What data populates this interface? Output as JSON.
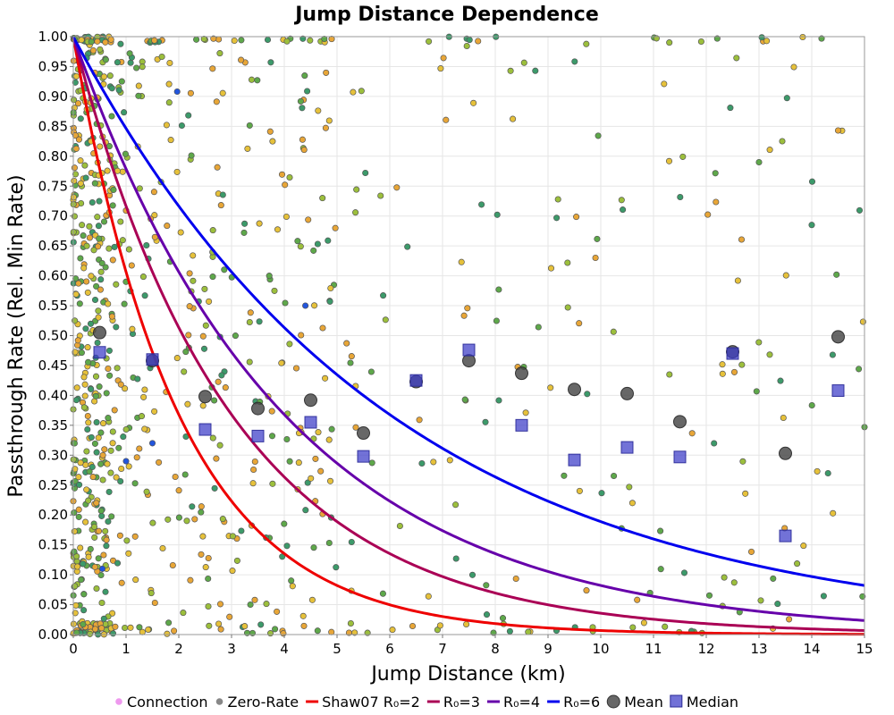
{
  "chart_data": {
    "type": "scatter",
    "title": "Jump Distance Dependence",
    "xlabel": "Jump Distance (km)",
    "ylabel": "Passthrough Rate (Rel. Min Rate)",
    "xlim": [
      0,
      15
    ],
    "ylim": [
      0,
      1
    ],
    "x_ticks": [
      "0",
      "1",
      "2",
      "3",
      "4",
      "5",
      "6",
      "7",
      "8",
      "9",
      "10",
      "11",
      "12",
      "13",
      "14",
      "15"
    ],
    "y_ticks": [
      "0.00",
      "0.05",
      "0.10",
      "0.15",
      "0.20",
      "0.25",
      "0.30",
      "0.35",
      "0.40",
      "0.45",
      "0.50",
      "0.55",
      "0.60",
      "0.65",
      "0.70",
      "0.75",
      "0.80",
      "0.85",
      "0.90",
      "0.95",
      "1.00"
    ],
    "grid": true,
    "legend_position": "bottom",
    "legend": [
      {
        "label": "Connection",
        "kind": "dot",
        "color": "#ee99ee"
      },
      {
        "label": "Zero-Rate",
        "kind": "dot",
        "color": "#888888"
      },
      {
        "label": "Shaw07 R₀=2",
        "kind": "line",
        "color": "#ee0000"
      },
      {
        "label": "R₀=3",
        "kind": "line",
        "color": "#aa0055"
      },
      {
        "label": "R₀=4",
        "kind": "line",
        "color": "#6600aa"
      },
      {
        "label": "R₀=6",
        "kind": "line",
        "color": "#0000ee"
      },
      {
        "label": "Mean",
        "kind": "circle",
        "color": "#555555"
      },
      {
        "label": "Median",
        "kind": "square",
        "color": "#5555cc"
      }
    ],
    "curves": [
      {
        "name": "Shaw07 R₀=2",
        "color": "#ee0000",
        "decay_km": 2.0
      },
      {
        "name": "R₀=3",
        "color": "#aa0055",
        "decay_km": 3.0
      },
      {
        "name": "R₀=4",
        "color": "#6600aa",
        "decay_km": 4.0
      },
      {
        "name": "R₀=6",
        "color": "#0000ee",
        "decay_km": 6.0
      }
    ],
    "mean": {
      "x": [
        0.5,
        1.5,
        2.5,
        3.5,
        4.5,
        5.5,
        6.5,
        7.5,
        8.5,
        9.5,
        10.5,
        11.5,
        12.5,
        13.5,
        14.5
      ],
      "y": [
        0.505,
        0.458,
        0.398,
        0.378,
        0.392,
        0.337,
        0.423,
        0.458,
        0.437,
        0.41,
        0.403,
        0.356,
        0.473,
        0.303,
        0.498
      ]
    },
    "median": {
      "x": [
        0.5,
        1.5,
        2.5,
        3.5,
        4.5,
        5.5,
        6.5,
        7.5,
        8.5,
        9.5,
        10.5,
        11.5,
        12.5,
        13.5,
        14.5
      ],
      "y": [
        0.472,
        0.46,
        0.343,
        0.332,
        0.355,
        0.298,
        0.425,
        0.476,
        0.35,
        0.292,
        0.313,
        0.297,
        0.47,
        0.165,
        0.408
      ]
    },
    "scatter_points": {
      "colors": [
        "#e6c13a",
        "#9cbf3c",
        "#5ea84a",
        "#3c9a6a",
        "#e8a637"
      ],
      "edge_color": "#555555",
      "seed": 12345,
      "dense_region": {
        "count": 430,
        "x_range": [
          0,
          0.8
        ]
      },
      "mid_region": {
        "count": 330,
        "x_range": [
          0.8,
          5
        ]
      },
      "sparse_region": {
        "count": 180,
        "x_range": [
          5,
          15
        ]
      },
      "explicit": [
        {
          "x": 1.97,
          "y": 0.908,
          "color": "#2255dd"
        },
        {
          "x": 0.55,
          "y": 0.11,
          "color": "#2255dd"
        },
        {
          "x": 1.0,
          "y": 0.29,
          "color": "#2255dd"
        },
        {
          "x": 4.4,
          "y": 0.55,
          "color": "#2255dd"
        },
        {
          "x": 1.5,
          "y": 0.32,
          "color": "#2255dd"
        },
        {
          "x": 14.0,
          "y": 0.685,
          "color": "#3c9a6a"
        },
        {
          "x": 15.0,
          "y": 0.347,
          "color": "#5ea84a"
        },
        {
          "x": 14.5,
          "y": 0.843,
          "color": "#e8a637"
        },
        {
          "x": 11.2,
          "y": 0.921,
          "color": "#e6c13a"
        },
        {
          "x": 9.9,
          "y": 0.63,
          "color": "#e8a637"
        },
        {
          "x": 13.0,
          "y": 0.79,
          "color": "#5ea84a"
        },
        {
          "x": 12.6,
          "y": 0.592,
          "color": "#e6c13a"
        },
        {
          "x": 10.6,
          "y": 0.22,
          "color": "#e6c13a"
        },
        {
          "x": 9.6,
          "y": 0.24,
          "color": "#e6c13a"
        }
      ]
    }
  }
}
